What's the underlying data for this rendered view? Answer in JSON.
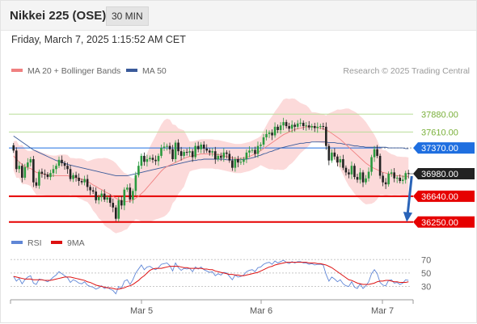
{
  "header": {
    "title": "Nikkei 225 (OSE)",
    "interval": "30 MIN",
    "datetime": "Friday, March 7, 2025 1:15:52 AM CET"
  },
  "legend": {
    "ma20": "MA 20 + Bollinger Bands",
    "ma50": "MA 50",
    "credit": "Research © 2025 Trading Central",
    "rsi": "RSI",
    "rsi_ma": "9MA"
  },
  "colors": {
    "bullish": "#2a9a3e",
    "bearish": "#222222",
    "ma20": "#f08080",
    "ma50": "#3a5a9a",
    "band_fill": "#fcdada",
    "resistance": "#b8dd98",
    "support": "#e60000",
    "pivot": "#1f6fe0",
    "arrow": "#2a64b8",
    "rsi": "#5f86d6",
    "rsi_ma": "#dd1111"
  },
  "chart_data": {
    "type": "candlestick",
    "interval": "30 MIN",
    "y_range": [
      36150,
      38250
    ],
    "x_ticks": [
      "Mar 5",
      "Mar 6",
      "Mar 7"
    ],
    "levels": [
      {
        "value": 37880.0,
        "label": "37880.00",
        "role": "resistance"
      },
      {
        "value": 37610.0,
        "label": "37610.00",
        "role": "resistance"
      },
      {
        "value": 37370.0,
        "label": "37370.00",
        "role": "pivot"
      },
      {
        "value": 36980.0,
        "label": "36980.00",
        "role": "last"
      },
      {
        "value": 36640.0,
        "label": "36640.00",
        "role": "support"
      },
      {
        "value": 36250.0,
        "label": "36250.00",
        "role": "support"
      }
    ],
    "close": [
      37330,
      37050,
      37100,
      36920,
      37080,
      37150,
      37200,
      36850,
      36800,
      37010,
      36980,
      36970,
      36930,
      36990,
      37050,
      37100,
      37190,
      37140,
      37100,
      37050,
      36900,
      36960,
      36920,
      36870,
      36850,
      36900,
      36780,
      36730,
      36710,
      36580,
      36630,
      36680,
      36590,
      36620,
      36540,
      36470,
      36300,
      36580,
      36500,
      36740,
      36770,
      36590,
      36720,
      36960,
      37100,
      37250,
      37160,
      37200,
      37220,
      37190,
      37170,
      37250,
      37370,
      37390,
      37400,
      37350,
      37200,
      37450,
      37320,
      37250,
      37310,
      37300,
      37320,
      37230,
      37400,
      37350,
      37420,
      37360,
      37330,
      37300,
      37320,
      37200,
      37250,
      37220,
      37300,
      37280,
      37180,
      37070,
      37200,
      37150,
      37160,
      37200,
      37300,
      37330,
      37340,
      37280,
      37400,
      37420,
      37530,
      37580,
      37600,
      37560,
      37690,
      37640,
      37710,
      37760,
      37700,
      37660,
      37720,
      37690,
      37740,
      37750,
      37700,
      37710,
      37680,
      37700,
      37670,
      37690,
      37700,
      37690,
      37400,
      37180,
      37300,
      37240,
      37150,
      37200,
      37070,
      37000,
      36970,
      37100,
      36930,
      36890,
      37000,
      36850,
      36910,
      37010,
      37230,
      37350,
      37250,
      36950,
      36850,
      36820,
      36980,
      37000,
      36910,
      36920,
      36870,
      36890,
      36990,
      36980
    ],
    "ma20": [
      37250,
      37200,
      37160,
      37120,
      37090,
      37070,
      37060,
      37030,
      37000,
      36990,
      36980,
      36970,
      36960,
      36950,
      36950,
      36950,
      36950,
      36950,
      36950,
      36950,
      36940,
      36930,
      36920,
      36910,
      36900,
      36880,
      36860,
      36840,
      36810,
      36790,
      36760,
      36740,
      36710,
      36690,
      36670,
      36640,
      36610,
      36590,
      36570,
      36560,
      36560,
      36570,
      36580,
      36610,
      36640,
      36680,
      36720,
      36770,
      36820,
      36870,
      36920,
      36970,
      37020,
      37060,
      37090,
      37110,
      37130,
      37150,
      37170,
      37190,
      37210,
      37230,
      37240,
      37250,
      37260,
      37270,
      37280,
      37280,
      37280,
      37280,
      37280,
      37270,
      37270,
      37260,
      37250,
      37240,
      37230,
      37220,
      37210,
      37210,
      37210,
      37220,
      37230,
      37240,
      37260,
      37280,
      37300,
      37330,
      37360,
      37390,
      37420,
      37450,
      37480,
      37510,
      37540,
      37570,
      37590,
      37610,
      37630,
      37650,
      37660,
      37670,
      37680,
      37690,
      37690,
      37690,
      37690,
      37680,
      37670,
      37660,
      37640,
      37620,
      37590,
      37560,
      37530,
      37500,
      37460,
      37420,
      37380,
      37340,
      37300,
      37260,
      37220,
      37180,
      37140,
      37110,
      37080,
      37060,
      37040,
      37020,
      37000,
      36990,
      36980,
      36970,
      36960,
      36950,
      36950,
      36940,
      36940,
      36940
    ],
    "ma50": [
      37550,
      37520,
      37490,
      37460,
      37430,
      37400,
      37370,
      37340,
      37320,
      37300,
      37280,
      37260,
      37240,
      37220,
      37200,
      37180,
      37170,
      37150,
      37140,
      37120,
      37110,
      37100,
      37090,
      37080,
      37070,
      37060,
      37050,
      37040,
      37030,
      37020,
      37010,
      37000,
      36990,
      36980,
      36970,
      36960,
      36950,
      36950,
      36950,
      36950,
      36950,
      36960,
      36970,
      36980,
      36990,
      37000,
      37010,
      37020,
      37030,
      37040,
      37050,
      37060,
      37070,
      37080,
      37090,
      37100,
      37110,
      37120,
      37130,
      37140,
      37150,
      37160,
      37170,
      37180,
      37180,
      37190,
      37190,
      37200,
      37200,
      37200,
      37200,
      37200,
      37200,
      37200,
      37200,
      37190,
      37190,
      37190,
      37190,
      37190,
      37190,
      37200,
      37200,
      37210,
      37220,
      37230,
      37250,
      37260,
      37280,
      37290,
      37310,
      37320,
      37340,
      37350,
      37370,
      37380,
      37390,
      37400,
      37410,
      37420,
      37430,
      37440,
      37440,
      37450,
      37450,
      37460,
      37460,
      37460,
      37460,
      37460,
      37460,
      37450,
      37450,
      37450,
      37440,
      37440,
      37430,
      37420,
      37420,
      37410,
      37400,
      37400,
      37390,
      37390,
      37380,
      37380,
      37380,
      37380,
      37380,
      37380,
      37380,
      37380,
      37370,
      37370,
      37370,
      37370,
      37370,
      37370,
      37360,
      37360
    ],
    "rsi": {
      "y_range": [
        15,
        80
      ],
      "ticks": [
        70,
        50,
        30
      ],
      "rsi_values": [
        45,
        38,
        42,
        34,
        40,
        44,
        46,
        35,
        33,
        41,
        40,
        39,
        37,
        40,
        44,
        47,
        52,
        49,
        46,
        43,
        36,
        40,
        38,
        35,
        34,
        37,
        32,
        30,
        29,
        26,
        28,
        31,
        27,
        29,
        26,
        24,
        19,
        30,
        27,
        38,
        40,
        33,
        40,
        50,
        56,
        62,
        55,
        59,
        60,
        57,
        55,
        58,
        63,
        64,
        65,
        61,
        53,
        65,
        58,
        54,
        57,
        56,
        57,
        52,
        59,
        56,
        59,
        55,
        53,
        51,
        52,
        46,
        49,
        47,
        51,
        50,
        45,
        40,
        47,
        44,
        45,
        47,
        52,
        54,
        55,
        52,
        58,
        59,
        63,
        65,
        66,
        63,
        68,
        65,
        67,
        69,
        66,
        64,
        67,
        65,
        67,
        67,
        65,
        65,
        63,
        64,
        62,
        63,
        63,
        62,
        48,
        38,
        44,
        41,
        37,
        40,
        34,
        31,
        30,
        37,
        29,
        27,
        34,
        27,
        31,
        37,
        49,
        55,
        49,
        36,
        32,
        31,
        39,
        40,
        35,
        36,
        33,
        35,
        40,
        39
      ],
      "ma_values": [
        45,
        44,
        43,
        42,
        41,
        41,
        41,
        40,
        40,
        40,
        40,
        39,
        39,
        39,
        40,
        41,
        42,
        43,
        44,
        44,
        44,
        43,
        42,
        41,
        40,
        39,
        37,
        36,
        34,
        32,
        31,
        30,
        29,
        28,
        28,
        27,
        26,
        26,
        27,
        28,
        30,
        31,
        33,
        36,
        39,
        43,
        46,
        50,
        54,
        56,
        57,
        57,
        57,
        58,
        59,
        60,
        60,
        60,
        60,
        59,
        58,
        58,
        57,
        57,
        57,
        57,
        57,
        56,
        56,
        55,
        55,
        53,
        52,
        51,
        50,
        49,
        48,
        48,
        47,
        47,
        46,
        46,
        47,
        48,
        49,
        50,
        51,
        53,
        55,
        57,
        59,
        60,
        62,
        63,
        64,
        65,
        66,
        66,
        66,
        66,
        66,
        66,
        66,
        66,
        65,
        65,
        65,
        64,
        64,
        63,
        62,
        60,
        58,
        55,
        52,
        49,
        46,
        43,
        40,
        39,
        37,
        35,
        34,
        33,
        33,
        33,
        34,
        35,
        37,
        38,
        38,
        39,
        39,
        38,
        37,
        37,
        36,
        36,
        36,
        37
      ]
    }
  }
}
